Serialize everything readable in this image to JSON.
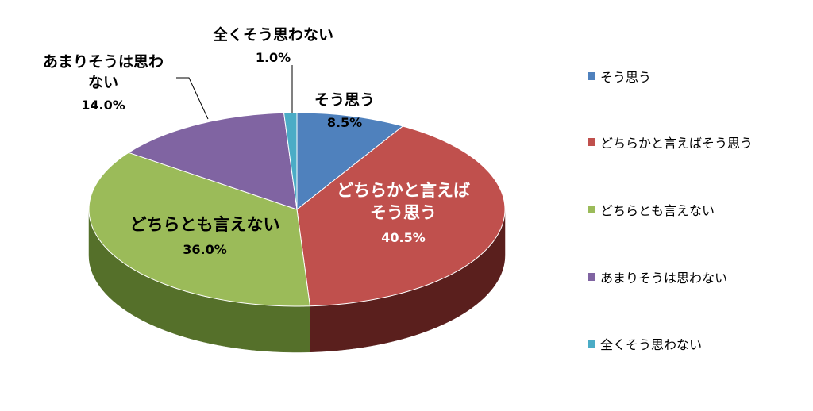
{
  "chart_data": {
    "type": "pie",
    "style": "3d-exploded-none",
    "legend_position": "right",
    "slices": [
      {
        "label": "そう思う",
        "value": 8.5,
        "value_label": "8.5%",
        "color": "#4F81BD",
        "side_color": "#2B4A72"
      },
      {
        "label": "どちらかと言えばそう思う",
        "value": 40.5,
        "value_label": "40.5%",
        "color": "#C0504D",
        "side_color": "#5A1F1D"
      },
      {
        "label": "どちらとも言えない",
        "value": 36.0,
        "value_label": "36.0%",
        "color": "#9BBB59",
        "side_color": "#55702A"
      },
      {
        "label": "あまりそうは思わない",
        "value": 14.0,
        "value_label": "14.0%",
        "color": "#8064A2",
        "side_color": "#4A3766"
      },
      {
        "label": "全くそう思わない",
        "value": 1.0,
        "value_label": "1.0%",
        "color": "#4BACC6",
        "side_color": "#2A6F80"
      }
    ],
    "data_labels": [
      {
        "lines": [
          "そう思う"
        ],
        "value_label": "8.5%"
      },
      {
        "lines": [
          "どちらかと言えば",
          "そう思う"
        ],
        "value_label": "40.5%"
      },
      {
        "lines": [
          "どちらとも言えない"
        ],
        "value_label": "36.0%"
      },
      {
        "lines": [
          "あまりそうは思わ",
          "ない"
        ],
        "value_label": "14.0%"
      },
      {
        "lines": [
          "全くそう思わない"
        ],
        "value_label": "1.0%"
      }
    ],
    "legend": [
      {
        "label": "そう思う",
        "color": "#4F81BD"
      },
      {
        "label": "どちらかと言えばそう思う",
        "color": "#C0504D"
      },
      {
        "label": "どちらとも言えない",
        "color": "#9BBB59"
      },
      {
        "label": "あまりそうは思わない",
        "color": "#8064A2"
      },
      {
        "label": "全くそう思わない",
        "color": "#4BACC6"
      }
    ]
  }
}
